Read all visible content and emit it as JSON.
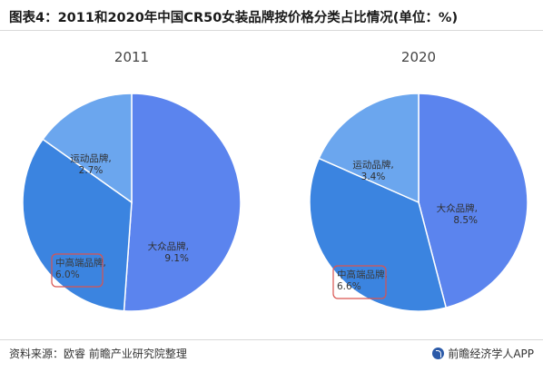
{
  "title": "图表4：2011和2020年中国CR50女装品牌按价格分类占比情况(单位：%)",
  "footer": {
    "source": "资料来源：欧睿 前瞻产业研究院整理",
    "brand": "前瞻经济学人APP",
    "brand_icon": "qianzhan-logo-icon"
  },
  "watermark": "前瞻产业研究院",
  "colors": {
    "mass": "#5b84ee",
    "premium": "#3b84e0",
    "sports": "#6ba6ee",
    "highlight_box": "#d9534f"
  },
  "chart_data": [
    {
      "type": "pie",
      "title": "2011",
      "categories": [
        "大众品牌",
        "中高端品牌",
        "运动品牌"
      ],
      "values": [
        9.1,
        6.0,
        2.7
      ],
      "labels": [
        "大众品牌, 9.1%",
        "中高端品牌, 6.0%",
        "运动品牌, 2.7%"
      ],
      "highlighted": "中高端品牌"
    },
    {
      "type": "pie",
      "title": "2020",
      "categories": [
        "大众品牌",
        "中高端品牌",
        "运动品牌"
      ],
      "values": [
        8.5,
        6.6,
        3.4
      ],
      "labels": [
        "大众品牌, 8.5%",
        "中高端品牌, 6.6%",
        "运动品牌, 3.4%"
      ],
      "highlighted": "中高端品牌"
    }
  ]
}
